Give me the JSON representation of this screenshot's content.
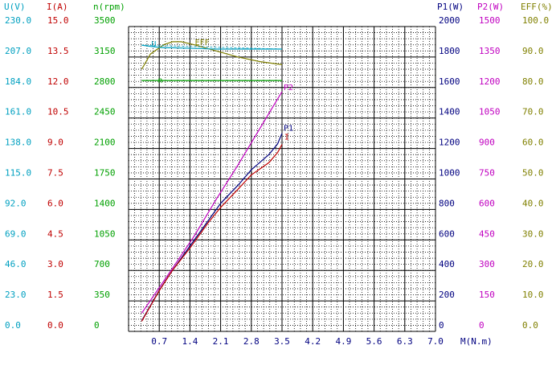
{
  "chart_data": {
    "type": "line",
    "x_axis": {
      "label": "M(N.m)",
      "range": [
        0,
        7.0
      ],
      "ticks": [
        "0.7",
        "1.4",
        "2.1",
        "2.8",
        "3.5",
        "4.2",
        "4.9",
        "5.6",
        "6.3",
        "7.0"
      ],
      "color": "#000080"
    },
    "left_axes": [
      {
        "key": "U",
        "label": "U(V)",
        "range": [
          0,
          230
        ],
        "ticks": [
          "0.0",
          "23.0",
          "46.0",
          "69.0",
          "92.0",
          "115.0",
          "138.0",
          "161.0",
          "184.0",
          "207.0",
          "230.0"
        ],
        "color": "#00a0c0"
      },
      {
        "key": "I",
        "label": "I(A)",
        "range": [
          0,
          15
        ],
        "ticks": [
          "0.0",
          "1.5",
          "3.0",
          "4.5",
          "6.0",
          "7.5",
          "9.0",
          "10.5",
          "12.0",
          "13.5",
          "15.0"
        ],
        "color": "#c00000"
      },
      {
        "key": "n",
        "label": "n(rpm)",
        "range": [
          0,
          3500
        ],
        "ticks": [
          "0",
          "350",
          "700",
          "1050",
          "1400",
          "1750",
          "2100",
          "2450",
          "2800",
          "3150",
          "3500"
        ],
        "color": "#00a000"
      }
    ],
    "right_axes": [
      {
        "key": "P1",
        "label": "P1(W)",
        "range": [
          0,
          2000
        ],
        "ticks": [
          "0",
          "200",
          "400",
          "600",
          "800",
          "1000",
          "1200",
          "1400",
          "1600",
          "1800",
          "2000"
        ],
        "color": "#000080"
      },
      {
        "key": "P2",
        "label": "P2(W)",
        "range": [
          0,
          1500
        ],
        "ticks": [
          "0",
          "150",
          "300",
          "450",
          "600",
          "750",
          "900",
          "1050",
          "1200",
          "1350",
          "1500"
        ],
        "color": "#c000c0"
      },
      {
        "key": "EFF",
        "label": "EFF(%)",
        "range": [
          0,
          100
        ],
        "ticks": [
          "0.0",
          "10.0",
          "20.0",
          "30.0",
          "40.0",
          "50.0",
          "60.0",
          "70.0",
          "80.0",
          "90.0",
          "100.0"
        ],
        "color": "#808000"
      }
    ],
    "grid": true,
    "series": [
      {
        "name": "EFF",
        "axis": "EFF",
        "color": "#808000",
        "x": [
          0.3,
          0.5,
          0.8,
          1.0,
          1.2,
          1.5,
          2.0,
          2.5,
          3.0,
          3.5
        ],
        "y": [
          86,
          91,
          94,
          95,
          95,
          94,
          92,
          90,
          88.5,
          87.5
        ]
      },
      {
        "name": "U",
        "axis": "U",
        "color": "#00a0c0",
        "x": [
          0.3,
          0.5,
          0.8,
          1.0,
          1.5,
          2.0,
          2.5,
          3.0,
          3.5
        ],
        "y": [
          216,
          215,
          214,
          214,
          213.5,
          213,
          213,
          213,
          213
        ]
      },
      {
        "name": "n",
        "axis": "n",
        "color": "#00a000",
        "x": [
          0.3,
          1.0,
          2.0,
          3.0,
          3.5
        ],
        "y": [
          2880,
          2880,
          2880,
          2880,
          2880
        ]
      },
      {
        "name": "P2",
        "axis": "P2",
        "color": "#c000c0",
        "x": [
          0.3,
          1.0,
          1.5,
          2.0,
          2.5,
          3.0,
          3.5
        ],
        "y": [
          90,
          310,
          470,
          650,
          820,
          1000,
          1180
        ]
      },
      {
        "name": "P1",
        "axis": "P1",
        "color": "#000080",
        "x": [
          0.3,
          0.7,
          1.0,
          1.4,
          1.8,
          2.1,
          2.5,
          2.8,
          3.0,
          3.2,
          3.4,
          3.5
        ],
        "y": [
          70,
          270,
          400,
          560,
          720,
          840,
          960,
          1060,
          1110,
          1160,
          1230,
          1300
        ]
      },
      {
        "name": "I",
        "axis": "I",
        "color": "#c00000",
        "x": [
          0.3,
          0.7,
          1.0,
          1.4,
          1.8,
          2.1,
          2.5,
          2.8,
          3.0,
          3.2,
          3.4,
          3.5
        ],
        "y": [
          0.5,
          2.0,
          3.0,
          4.1,
          5.3,
          6.1,
          7.0,
          7.7,
          8.0,
          8.3,
          8.8,
          9.2
        ]
      }
    ],
    "curve_labels": [
      {
        "text": "EFF",
        "series": "EFF",
        "color": "#808000"
      },
      {
        "text": "U",
        "series": "U",
        "color": "#00a0c0"
      },
      {
        "text": "n",
        "series": "n",
        "color": "#00a000"
      },
      {
        "text": "P2",
        "series": "P2",
        "color": "#c000c0"
      },
      {
        "text": "P1",
        "series": "P1",
        "color": "#000080"
      },
      {
        "text": "I",
        "series": "I",
        "color": "#c00000"
      }
    ]
  }
}
